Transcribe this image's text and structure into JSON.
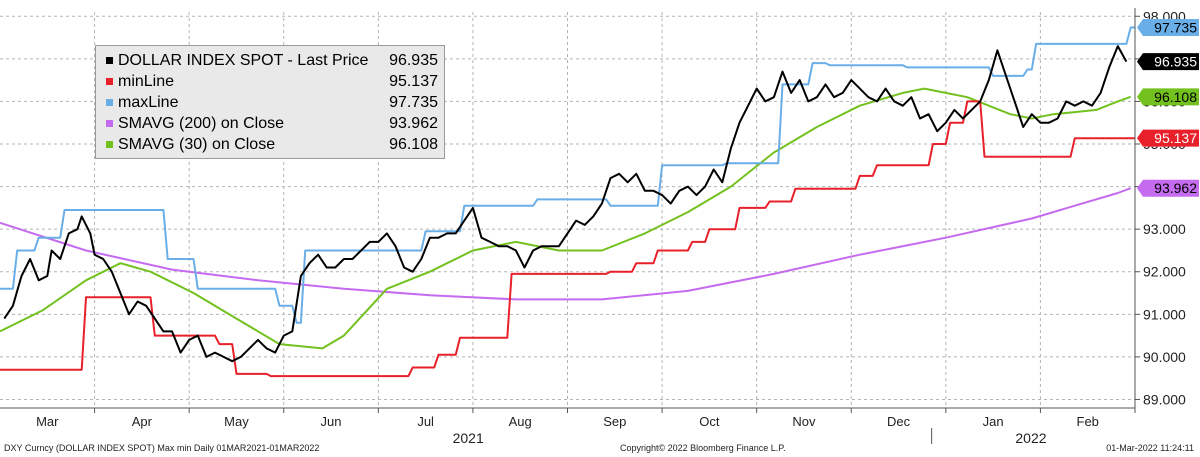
{
  "chart_data": {
    "type": "line",
    "title": "DXY Curncy (DOLLAR INDEX SPOT) Max min  Daily 01MAR2021-01MAR2022",
    "copyright": "Copyright© 2022 Bloomberg Finance L.P.",
    "timestamp": "01-Mar-2022 11:24:11",
    "ylim": [
      88.8,
      98.1
    ],
    "yticks": [
      89.0,
      90.0,
      91.0,
      92.0,
      93.0,
      94.0,
      95.0,
      96.0,
      97.0,
      98.0
    ],
    "ytick_labels": [
      "89.000",
      "90.000",
      "91.000",
      "92.000",
      "93.000",
      "94.000",
      "95.000",
      "96.000",
      "97.000",
      "98.000"
    ],
    "x_months": [
      "Mar",
      "Apr",
      "May",
      "Jun",
      "Jul",
      "Aug",
      "Sep",
      "Oct",
      "Nov",
      "Dec",
      "Jan",
      "Feb"
    ],
    "x_years": [
      "2021",
      "2022"
    ],
    "legend_position": "top-left",
    "grid": true,
    "series": [
      {
        "name": "DOLLAR INDEX SPOT - Last Price",
        "last": "96.935",
        "color": "#000000",
        "x": [
          1,
          3,
          5,
          7,
          9,
          11,
          12,
          14,
          16,
          18,
          19,
          21,
          22,
          24,
          26,
          28,
          30,
          32,
          34,
          36,
          38,
          40,
          42,
          44,
          46,
          48,
          50,
          52,
          54,
          56,
          58,
          60,
          62,
          64,
          66,
          68,
          70,
          72,
          74,
          76,
          78,
          80,
          82,
          84,
          86,
          88,
          90,
          92,
          94,
          96,
          98,
          100,
          102,
          104,
          106,
          108,
          110,
          112,
          114,
          116,
          118,
          120,
          122,
          124,
          126,
          128,
          130,
          132,
          134,
          136,
          138,
          140,
          142,
          144,
          146,
          148,
          150,
          152,
          154,
          156,
          158,
          160,
          162,
          164,
          166,
          168,
          170,
          172,
          174,
          176,
          178,
          180,
          182,
          184,
          186,
          188,
          190,
          192,
          194,
          196,
          198,
          200,
          202,
          204,
          206,
          208,
          210,
          212,
          214,
          216,
          218,
          220,
          222,
          224,
          226,
          228,
          230,
          232,
          234,
          236,
          238,
          240,
          242,
          244,
          246,
          248,
          250,
          252,
          254,
          256,
          258,
          260,
          262
        ],
        "y": [
          90.9,
          91.2,
          91.9,
          92.3,
          91.8,
          91.9,
          92.5,
          92.3,
          92.9,
          93.0,
          93.3,
          92.9,
          92.4,
          92.3,
          92.0,
          91.5,
          91.0,
          91.3,
          91.2,
          90.9,
          90.6,
          90.6,
          90.1,
          90.4,
          90.5,
          90.0,
          90.1,
          90.0,
          89.9,
          90.0,
          90.2,
          90.4,
          90.2,
          90.1,
          90.5,
          90.6,
          91.9,
          92.2,
          92.4,
          92.1,
          92.1,
          92.3,
          92.3,
          92.5,
          92.7,
          92.7,
          92.9,
          92.6,
          92.1,
          92.0,
          92.3,
          92.8,
          92.8,
          92.9,
          92.9,
          93.2,
          93.5,
          92.8,
          92.7,
          92.6,
          92.6,
          92.5,
          92.1,
          92.5,
          92.6,
          92.6,
          92.6,
          92.9,
          93.2,
          93.1,
          93.3,
          93.6,
          94.2,
          94.3,
          94.1,
          94.3,
          93.9,
          93.9,
          93.8,
          93.6,
          93.9,
          94.0,
          93.8,
          94.0,
          94.4,
          94.1,
          94.9,
          95.5,
          95.9,
          96.3,
          96.0,
          96.1,
          96.7,
          96.2,
          96.5,
          96.0,
          96.1,
          96.4,
          96.1,
          96.2,
          96.5,
          96.3,
          96.1,
          96.0,
          96.3,
          96.0,
          95.9,
          96.1,
          95.6,
          95.7,
          95.3,
          95.5,
          95.8,
          95.6,
          95.8,
          96.0,
          96.5,
          97.2,
          96.6,
          96.0,
          95.4,
          95.7,
          95.5,
          95.5,
          95.6,
          96.0,
          95.9,
          96.0,
          95.9,
          96.2,
          96.8,
          97.3,
          96.935
        ]
      },
      {
        "name": "minLine",
        "last": "95.137",
        "color": "#e8202a",
        "x": [
          0,
          19,
          20,
          35,
          36,
          50,
          51,
          54,
          55,
          62,
          63,
          72,
          73,
          95,
          96,
          101,
          102,
          106,
          107,
          118,
          119,
          141,
          142,
          147,
          148,
          152,
          153,
          160,
          161,
          164,
          165,
          171,
          172,
          178,
          179,
          184,
          185,
          199,
          200,
          203,
          204,
          216,
          217,
          220,
          221,
          224,
          225,
          228,
          229,
          249,
          250,
          264
        ],
        "y": [
          89.7,
          89.7,
          91.4,
          91.4,
          90.5,
          90.5,
          90.3,
          90.3,
          89.6,
          89.6,
          89.55,
          89.55,
          89.55,
          89.55,
          89.75,
          89.75,
          90.05,
          90.05,
          90.45,
          90.45,
          91.95,
          91.95,
          92.0,
          92.0,
          92.2,
          92.2,
          92.5,
          92.5,
          92.7,
          92.7,
          93.0,
          93.0,
          93.5,
          93.5,
          93.65,
          93.65,
          93.95,
          93.95,
          94.25,
          94.25,
          94.5,
          94.5,
          95.0,
          95.0,
          95.5,
          95.5,
          96.0,
          96.0,
          94.7,
          94.7,
          95.137,
          95.137
        ]
      },
      {
        "name": "maxLine",
        "last": "97.735",
        "color": "#6aaee8",
        "x": [
          0,
          3,
          4,
          8,
          9,
          14,
          15,
          38,
          39,
          45,
          46,
          64,
          65,
          68,
          69,
          70,
          71,
          98,
          99,
          107,
          108,
          124,
          125,
          141,
          142,
          153,
          154,
          168,
          169,
          181,
          182,
          188,
          189,
          192,
          193,
          200,
          201,
          210,
          211,
          230,
          231,
          238,
          239,
          240,
          241,
          262,
          263,
          264
        ],
        "y": [
          91.6,
          91.6,
          92.5,
          92.5,
          92.8,
          92.8,
          93.45,
          93.45,
          92.3,
          92.3,
          91.6,
          91.6,
          91.2,
          91.2,
          90.8,
          90.8,
          92.5,
          92.5,
          92.95,
          92.95,
          93.55,
          93.55,
          93.7,
          93.7,
          93.55,
          93.55,
          94.5,
          94.5,
          94.55,
          94.55,
          96.4,
          96.4,
          96.9,
          96.9,
          96.85,
          96.85,
          96.85,
          96.85,
          96.8,
          96.8,
          96.6,
          96.6,
          96.75,
          96.75,
          97.35,
          97.35,
          97.735,
          97.735
        ]
      },
      {
        "name": "SMAVG (200)  on Close",
        "last": "93.962",
        "color": "#c56bf0",
        "x": [
          0,
          20,
          40,
          60,
          80,
          100,
          120,
          140,
          160,
          180,
          200,
          220,
          240,
          250,
          260,
          263
        ],
        "y": [
          93.15,
          92.5,
          92.05,
          91.8,
          91.6,
          91.45,
          91.35,
          91.35,
          91.55,
          91.95,
          92.4,
          92.8,
          93.25,
          93.55,
          93.85,
          93.962
        ]
      },
      {
        "name": "SMAVG (30)  on Close",
        "last": "96.108",
        "color": "#73c11f",
        "x": [
          0,
          10,
          20,
          28,
          35,
          45,
          55,
          65,
          75,
          80,
          90,
          100,
          110,
          120,
          130,
          140,
          150,
          160,
          165,
          170,
          175,
          180,
          190,
          200,
          210,
          215,
          220,
          225,
          230,
          235,
          240,
          245,
          250,
          255,
          260,
          263
        ],
        "y": [
          90.6,
          91.1,
          91.8,
          92.2,
          92.0,
          91.5,
          90.9,
          90.3,
          90.2,
          90.5,
          91.6,
          92.0,
          92.5,
          92.7,
          92.5,
          92.5,
          92.9,
          93.4,
          93.7,
          94.0,
          94.4,
          94.8,
          95.4,
          95.9,
          96.2,
          96.3,
          96.2,
          96.1,
          95.9,
          95.7,
          95.6,
          95.7,
          95.75,
          95.8,
          96.0,
          96.108
        ]
      }
    ]
  }
}
